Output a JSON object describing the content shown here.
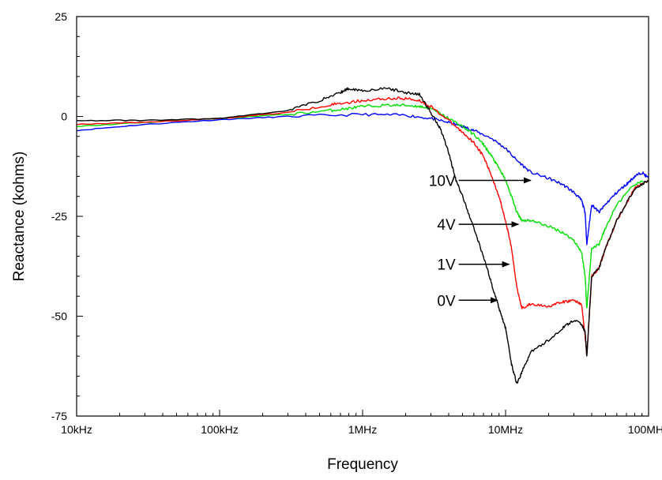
{
  "chart_data": {
    "type": "line",
    "xlabel": "Frequency",
    "ylabel": "Reactance (kohms)",
    "x_scale": "log",
    "xlim": [
      10000,
      100000000
    ],
    "ylim": [
      -75,
      25
    ],
    "x_ticks": [
      {
        "value": 10000,
        "label": "10kHz"
      },
      {
        "value": 100000,
        "label": "100kHz"
      },
      {
        "value": 1000000,
        "label": "1MHz"
      },
      {
        "value": 10000000,
        "label": "10MHz"
      },
      {
        "value": 100000000,
        "label": "100MHz"
      }
    ],
    "y_ticks": [
      {
        "value": 25,
        "label": "25"
      },
      {
        "value": 0,
        "label": "0"
      },
      {
        "value": -25,
        "label": "-25"
      },
      {
        "value": -50,
        "label": "-50"
      },
      {
        "value": -75,
        "label": "-75"
      }
    ],
    "grid": false,
    "series": [
      {
        "color": "#0000ff",
        "x": [
          10000,
          30000,
          100000,
          300000,
          1000000,
          2000000,
          3000000,
          4000000,
          5000000,
          6000000,
          8000000,
          10000000,
          12000000,
          15000000,
          20000000,
          25000000,
          30000000,
          34000000,
          36000000,
          37000000,
          40000000,
          45000000,
          50000000,
          60000000,
          70000000,
          80000000,
          90000000,
          100000000
        ],
        "y": [
          -3.5,
          -2,
          -0.8,
          0,
          0.5,
          0.3,
          -0.5,
          -1.5,
          -2.5,
          -3.5,
          -5.5,
          -8,
          -11,
          -14,
          -15.5,
          -17,
          -19,
          -21,
          -24,
          -32,
          -22,
          -24,
          -22,
          -19,
          -17,
          -15,
          -14,
          -15.5
        ]
      },
      {
        "color": "#00dd00",
        "x": [
          10000,
          30000,
          100000,
          300000,
          600000,
          800000,
          1000000,
          1500000,
          2000000,
          2500000,
          3000000,
          4000000,
          5000000,
          6000000,
          7000000,
          8000000,
          9000000,
          10000000,
          11000000,
          12000000,
          13000000,
          15000000,
          20000000,
          25000000,
          30000000,
          34000000,
          36000000,
          37000000,
          40000000,
          45000000,
          50000000,
          60000000,
          80000000,
          100000000
        ],
        "y": [
          -2.5,
          -1.5,
          -0.5,
          0.5,
          1.5,
          2,
          2.5,
          2.8,
          2.8,
          2.5,
          2,
          -0.5,
          -2.5,
          -4.5,
          -7,
          -10,
          -13,
          -16,
          -20,
          -24,
          -26,
          -26,
          -27.5,
          -29,
          -31,
          -34,
          -40,
          -48,
          -33,
          -32,
          -28,
          -22,
          -17,
          -16
        ]
      },
      {
        "color": "#ff0000",
        "x": [
          10000,
          30000,
          100000,
          300000,
          600000,
          800000,
          1000000,
          1500000,
          2000000,
          2500000,
          3000000,
          4000000,
          5000000,
          6000000,
          7000000,
          8000000,
          9000000,
          10000000,
          11000000,
          12000000,
          13000000,
          15000000,
          20000000,
          25000000,
          30000000,
          34000000,
          36000000,
          37000000,
          40000000,
          45000000,
          50000000,
          60000000,
          80000000,
          100000000
        ],
        "y": [
          -2,
          -1.5,
          -0.5,
          1,
          3,
          3.5,
          4,
          4.5,
          4.5,
          4,
          2.5,
          -1,
          -4,
          -6.5,
          -10,
          -15,
          -20,
          -26,
          -33,
          -43,
          -48,
          -47,
          -47.5,
          -46.5,
          -46,
          -47,
          -55,
          -60,
          -40,
          -38,
          -33,
          -26,
          -18,
          -16
        ]
      },
      {
        "color": "#000000",
        "x": [
          10000,
          30000,
          100000,
          300000,
          500000,
          700000,
          800000,
          1000000,
          1500000,
          2000000,
          2500000,
          3000000,
          3500000,
          4000000,
          4500000,
          5000000,
          6000000,
          7000000,
          8000000,
          9000000,
          10000000,
          11000000,
          12000000,
          13000000,
          15000000,
          20000000,
          25000000,
          30000000,
          34000000,
          36000000,
          37000000,
          40000000,
          45000000,
          50000000,
          60000000,
          80000000,
          100000000
        ],
        "y": [
          -1,
          -1,
          -0.5,
          1.5,
          4,
          6,
          7,
          6.5,
          7,
          6,
          5.5,
          1,
          -3,
          -9,
          -16,
          -20,
          -28,
          -35,
          -42,
          -48,
          -53,
          -62,
          -67,
          -64,
          -59,
          -56,
          -53,
          -51,
          -52,
          -54,
          -60,
          -40,
          -38,
          -33,
          -26,
          -18,
          -16
        ]
      }
    ],
    "annotations": [
      {
        "label": "10V",
        "arrow_from": [
          4700000,
          -16
        ],
        "arrow_to": [
          15000000,
          -16
        ]
      },
      {
        "label": "4V",
        "arrow_from": [
          4700000,
          -27
        ],
        "arrow_to": [
          12300000,
          -27
        ]
      },
      {
        "label": "1V",
        "arrow_from": [
          4700000,
          -37
        ],
        "arrow_to": [
          10600000,
          -37
        ]
      },
      {
        "label": "0V",
        "arrow_from": [
          4700000,
          -46
        ],
        "arrow_to": [
          8800000,
          -46
        ]
      }
    ]
  }
}
